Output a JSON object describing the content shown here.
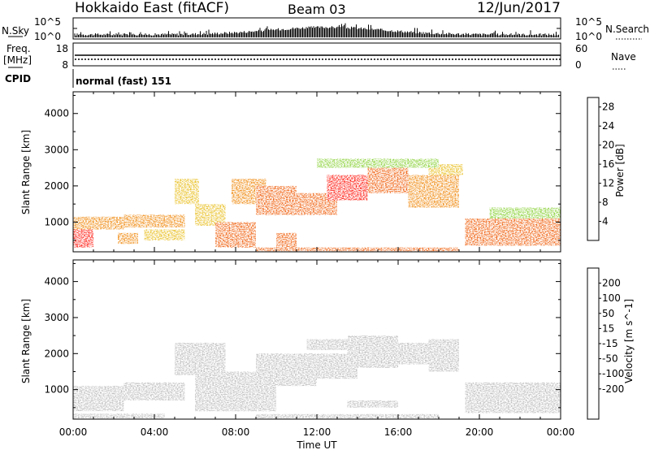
{
  "header": {
    "station": "Hokkaido East (fitACF)",
    "beam": "Beam 03",
    "date": "12/Jun/2017"
  },
  "top_panels": {
    "nsky_label": "N.Sky",
    "nsearch_label": "N.Search",
    "n_tick_top": "10^5",
    "n_tick_bottom": "10^0",
    "freq_label_1": "Freq.",
    "freq_label_2": "[MHz]",
    "freq_ticks": [
      "18",
      "8"
    ],
    "nave_label": "Nave",
    "nave_ticks": [
      "60",
      "0"
    ],
    "cpid_label": "CPID",
    "cpid_value": "normal (fast) 151"
  },
  "x_axis": {
    "title": "Time UT",
    "ticks": [
      "00:00",
      "04:00",
      "08:00",
      "12:00",
      "16:00",
      "20:00",
      "00:00"
    ]
  },
  "chart_data": [
    {
      "type": "heatmap",
      "quantity": "Power",
      "colorbar_label": "Power [dB]",
      "ylabel": "Slant Range [km]",
      "xlabel": "",
      "xlim": [
        0,
        24
      ],
      "ylim": [
        180,
        4600
      ],
      "y_ticks": [
        1000,
        2000,
        3000,
        4000
      ],
      "colorbar_ticks": [
        "4",
        "8",
        "12",
        "16",
        "20",
        "24",
        "28"
      ],
      "colorbar_range": [
        0,
        30
      ],
      "colors": [
        "#0018ff",
        "#1b4cd2",
        "#2d8c78",
        "#3aa05a",
        "#8cd23c",
        "#e9c025",
        "#f08c14",
        "#f06414",
        "#ff1e14"
      ],
      "regions": [
        {
          "t0": 0.0,
          "t1": 1.0,
          "r0": 300,
          "r1": 800,
          "value": 27
        },
        {
          "t0": 0.0,
          "t1": 2.5,
          "r0": 800,
          "r1": 1150,
          "value": 21
        },
        {
          "t0": 2.2,
          "t1": 3.2,
          "r0": 400,
          "r1": 700,
          "value": 23
        },
        {
          "t0": 2.5,
          "t1": 5.5,
          "r0": 850,
          "r1": 1200,
          "value": 20
        },
        {
          "t0": 3.5,
          "t1": 5.5,
          "r0": 500,
          "r1": 800,
          "value": 18
        },
        {
          "t0": 5.0,
          "t1": 6.2,
          "r0": 1500,
          "r1": 2200,
          "value": 17
        },
        {
          "t0": 6.0,
          "t1": 7.5,
          "r0": 900,
          "r1": 1500,
          "value": 19
        },
        {
          "t0": 7.0,
          "t1": 9.0,
          "r0": 300,
          "r1": 1000,
          "value": 24
        },
        {
          "t0": 7.8,
          "t1": 9.5,
          "r0": 1500,
          "r1": 2200,
          "value": 21
        },
        {
          "t0": 9.0,
          "t1": 11.0,
          "r0": 1200,
          "r1": 2000,
          "value": 25
        },
        {
          "t0": 10.0,
          "t1": 11.0,
          "r0": 300,
          "r1": 700,
          "value": 26
        },
        {
          "t0": 11.0,
          "t1": 13.0,
          "r0": 1200,
          "r1": 1800,
          "value": 26
        },
        {
          "t0": 12.5,
          "t1": 14.5,
          "r0": 1600,
          "r1": 2300,
          "value": 27
        },
        {
          "t0": 14.5,
          "t1": 16.5,
          "r0": 1800,
          "r1": 2500,
          "value": 25
        },
        {
          "t0": 16.5,
          "t1": 19.0,
          "r0": 1400,
          "r1": 2300,
          "value": 23
        },
        {
          "t0": 17.5,
          "t1": 19.2,
          "r0": 2300,
          "r1": 2600,
          "value": 18
        },
        {
          "t0": 19.3,
          "t1": 24.0,
          "r0": 350,
          "r1": 1100,
          "value": 25
        },
        {
          "t0": 20.5,
          "t1": 24.0,
          "r0": 1100,
          "r1": 1400,
          "value": 14
        },
        {
          "t0": 9.0,
          "t1": 19.0,
          "r0": 200,
          "r1": 300,
          "value": 26
        },
        {
          "t0": 12.0,
          "t1": 18.0,
          "r0": 2500,
          "r1": 2750,
          "value": 14
        }
      ]
    },
    {
      "type": "heatmap",
      "quantity": "Velocity",
      "colorbar_label": "Velocity [m s^-1]",
      "ylabel": "Slant Range [km]",
      "xlabel": "Time UT",
      "xlim": [
        0,
        24
      ],
      "ylim": [
        180,
        4600
      ],
      "y_ticks": [
        1000,
        2000,
        3000,
        4000
      ],
      "colorbar_ticks": [
        "200",
        "100",
        "50",
        "15",
        "-15",
        "-50",
        "-100",
        "-200"
      ],
      "colorbar_range": [
        -250,
        250
      ],
      "colors": [
        "#1e1eb4",
        "#2848a8",
        "#2d8c5a",
        "#66cc3a",
        "#bebebe",
        "#bebebe",
        "#f0c828",
        "#f0a01e",
        "#f06414",
        "#f01414"
      ],
      "regions": [
        {
          "t0": 0.0,
          "t1": 2.5,
          "r0": 400,
          "r1": 1100,
          "value": 0
        },
        {
          "t0": 0.0,
          "t1": 4.5,
          "r0": 200,
          "r1": 330,
          "value": 35
        },
        {
          "t0": 2.5,
          "t1": 5.5,
          "r0": 700,
          "r1": 1200,
          "value": 0
        },
        {
          "t0": 5.0,
          "t1": 7.5,
          "r0": 1400,
          "r1": 2300,
          "value": 0
        },
        {
          "t0": 6.0,
          "t1": 10.0,
          "r0": 400,
          "r1": 1500,
          "value": 0
        },
        {
          "t0": 9.0,
          "t1": 12.0,
          "r0": 1100,
          "r1": 2000,
          "value": 0
        },
        {
          "t0": 11.5,
          "t1": 14.0,
          "r0": 1300,
          "r1": 2000,
          "value": 0
        },
        {
          "t0": 11.5,
          "t1": 13.5,
          "r0": 2100,
          "r1": 2400,
          "value": 35
        },
        {
          "t0": 13.5,
          "t1": 16.0,
          "r0": 1600,
          "r1": 2500,
          "value": 0
        },
        {
          "t0": 16.0,
          "t1": 17.8,
          "r0": 1700,
          "r1": 2300,
          "value": 0
        },
        {
          "t0": 17.5,
          "t1": 19.0,
          "r0": 1500,
          "r1": 2400,
          "value": 35
        },
        {
          "t0": 19.3,
          "t1": 24.0,
          "r0": 350,
          "r1": 1200,
          "value": 0
        },
        {
          "t0": 13.5,
          "t1": 16.0,
          "r0": 500,
          "r1": 700,
          "value": -40
        },
        {
          "t0": 9.0,
          "t1": 18.0,
          "r0": 200,
          "r1": 320,
          "value": 30
        }
      ]
    }
  ]
}
